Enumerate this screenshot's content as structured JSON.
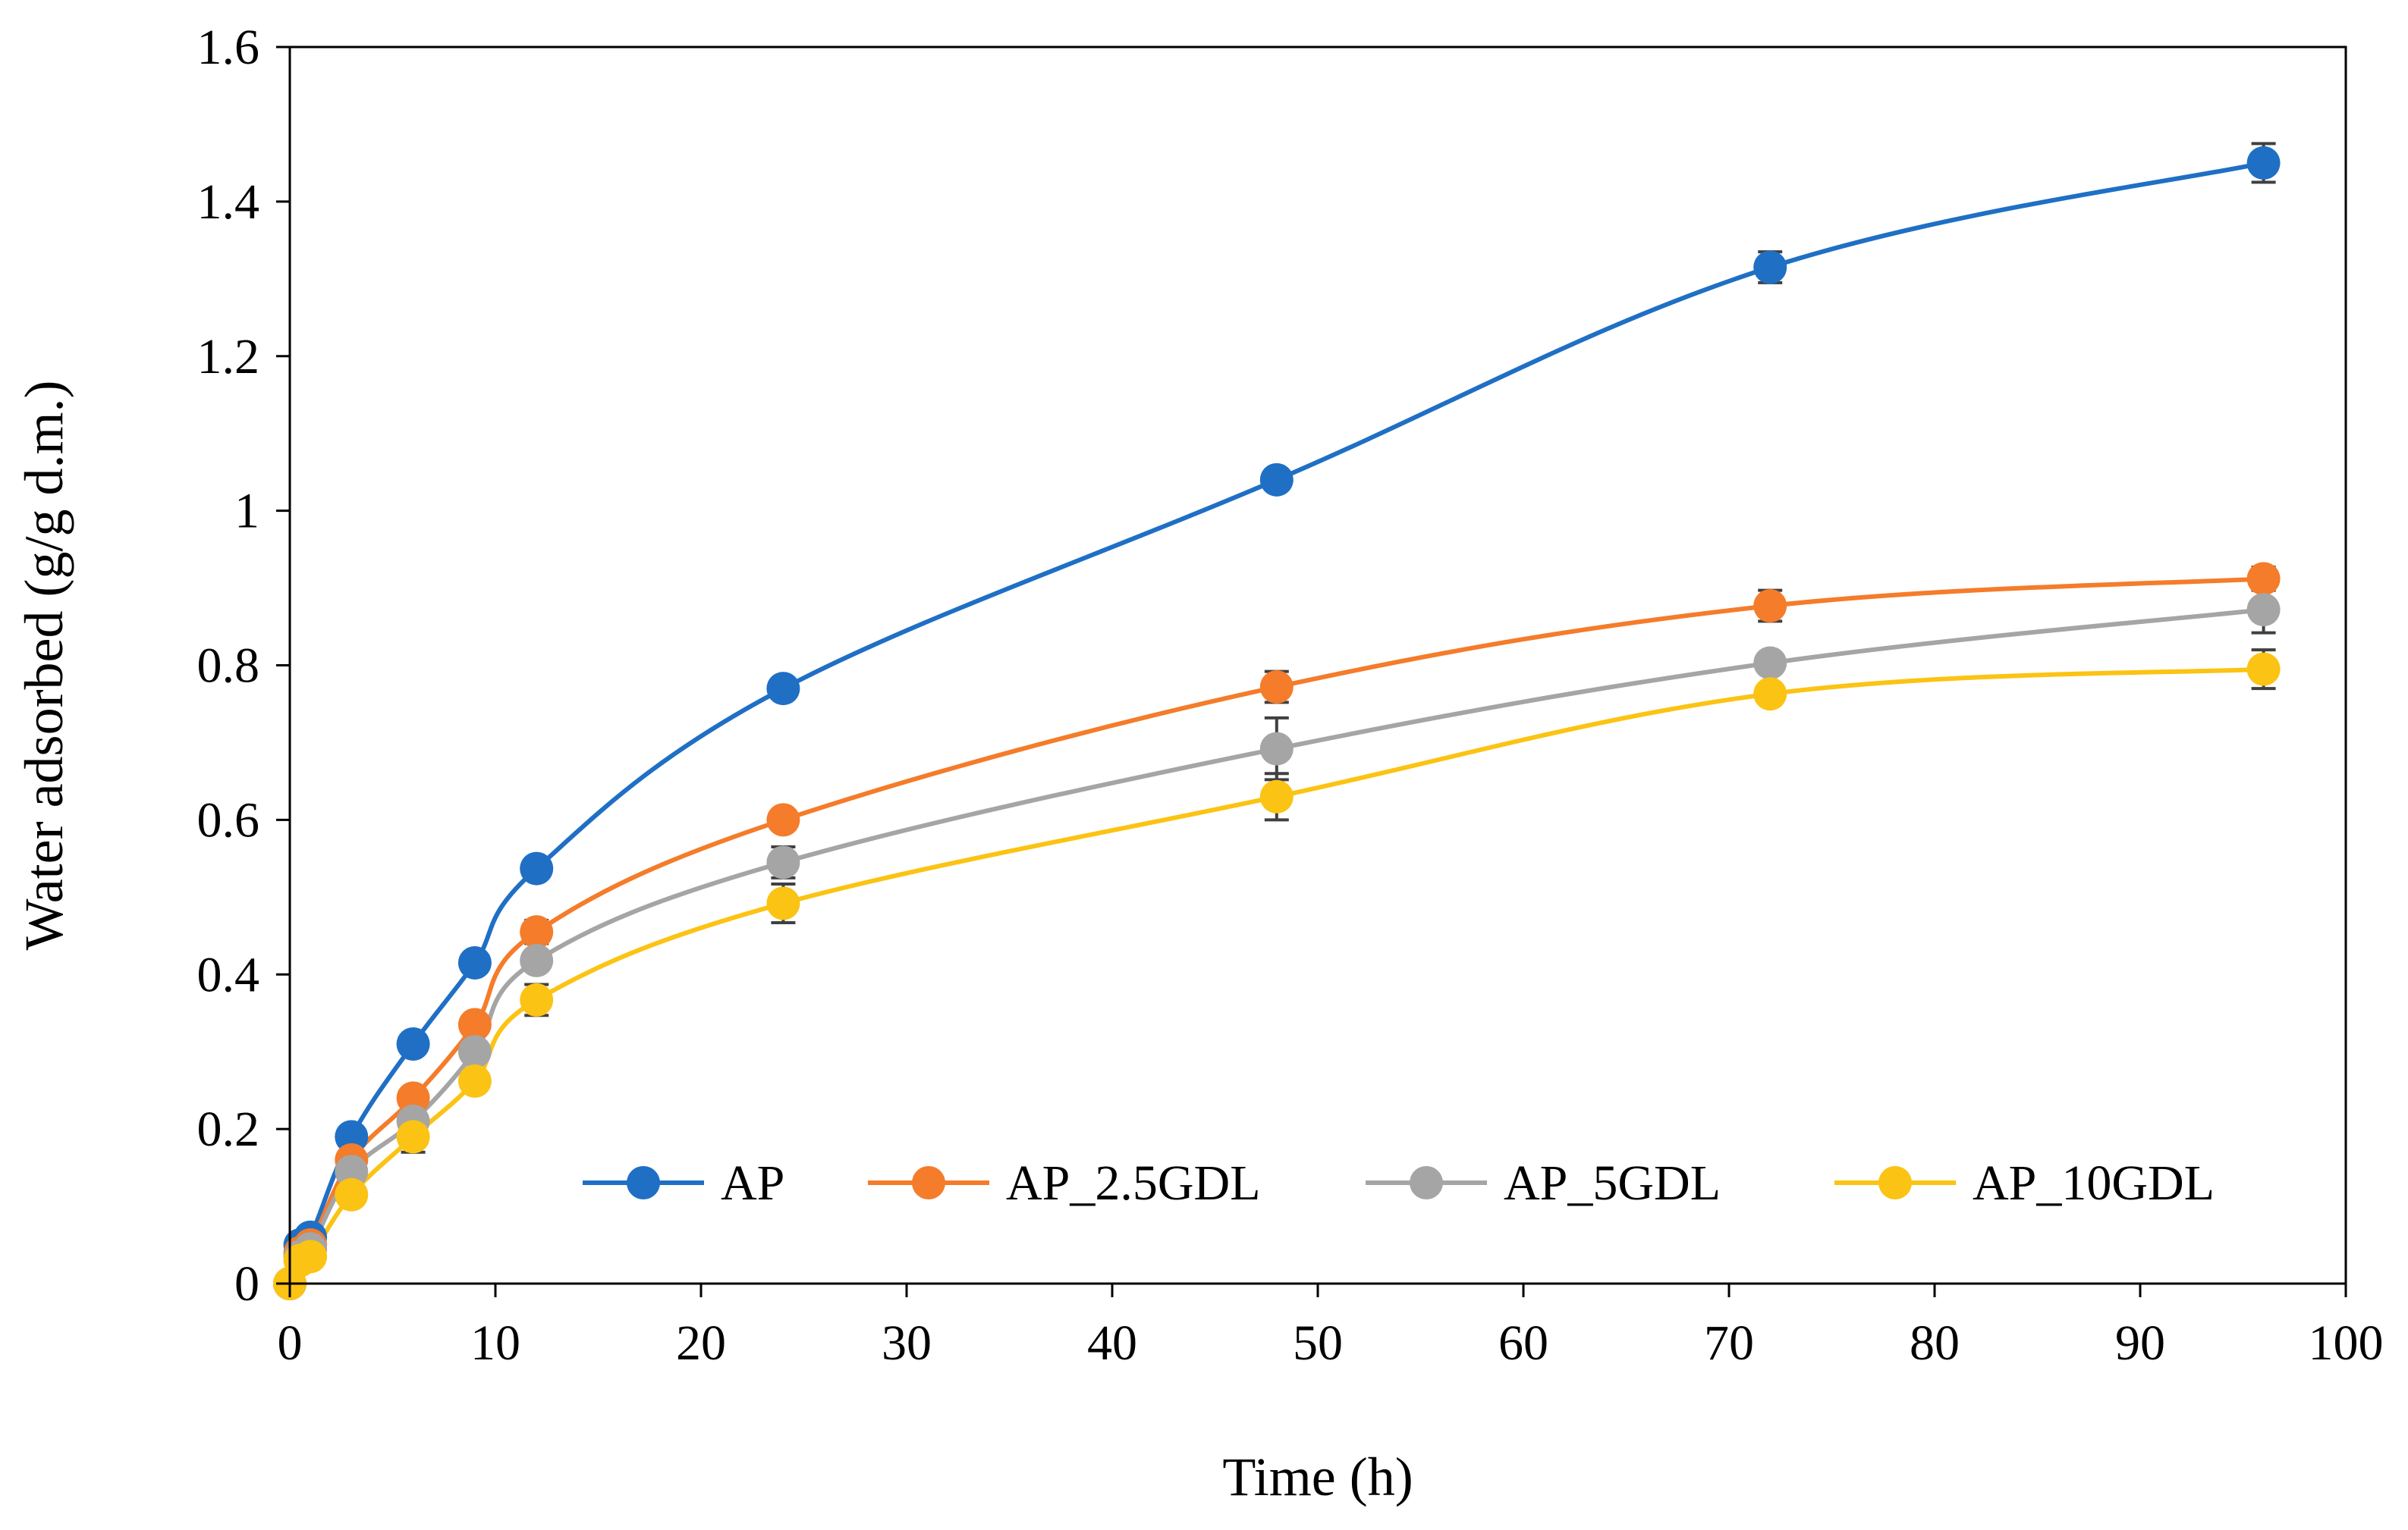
{
  "chart_data": {
    "type": "line",
    "title": "",
    "xlabel": "Time (h)",
    "ylabel": "Water adsorbed (g/g d.m.)",
    "xlim": [
      0,
      100
    ],
    "ylim": [
      0,
      1.6
    ],
    "xticks": [
      0,
      10,
      20,
      30,
      40,
      50,
      60,
      70,
      80,
      90,
      100
    ],
    "yticks": [
      0,
      0.2,
      0.4,
      0.6,
      0.8,
      1,
      1.2,
      1.4,
      1.6
    ],
    "xtick_labels": [
      "0",
      "10",
      "20",
      "30",
      "40",
      "50",
      "60",
      "70",
      "80",
      "90",
      "100"
    ],
    "ytick_labels": [
      "0",
      "0.2",
      "0.4",
      "0.6",
      "0.8",
      "1",
      "1.2",
      "1.4",
      "1.6"
    ],
    "grid": false,
    "legend_position": "bottom-right inside plot",
    "x": [
      0,
      0.5,
      1,
      3,
      6,
      9,
      12,
      24,
      48,
      72,
      96
    ],
    "series": [
      {
        "name": "AP",
        "color": "#1f6fc5",
        "values": [
          0,
          0.05,
          0.06,
          0.19,
          0.31,
          0.415,
          0.537,
          0.77,
          1.04,
          1.315,
          1.45
        ],
        "errors": [
          0,
          0,
          0,
          0,
          0,
          0,
          0,
          0,
          0,
          0.02,
          0.025
        ]
      },
      {
        "name": "AP_2.5GDL",
        "color": "#f47c2a",
        "values": [
          0,
          0.04,
          0.05,
          0.16,
          0.24,
          0.335,
          0.455,
          0.6,
          0.772,
          0.877,
          0.912
        ],
        "errors": [
          0,
          0,
          0,
          0,
          0,
          0,
          0.015,
          0,
          0.02,
          0.02,
          0.015
        ]
      },
      {
        "name": "AP_5GDL",
        "color": "#a5a5a5",
        "values": [
          0,
          0.035,
          0.045,
          0.145,
          0.21,
          0.3,
          0.418,
          0.545,
          0.692,
          0.803,
          0.872
        ],
        "errors": [
          0,
          0,
          0,
          0,
          0,
          0,
          0,
          0.02,
          0.04,
          0,
          0.03
        ]
      },
      {
        "name": "AP_10GDL",
        "color": "#fbc313",
        "values": [
          0,
          0.03,
          0.035,
          0.115,
          0.19,
          0.262,
          0.367,
          0.492,
          0.63,
          0.763,
          0.795
        ],
        "errors": [
          0,
          0,
          0,
          0,
          0.02,
          0,
          0.02,
          0.025,
          0.03,
          0,
          0.025
        ]
      }
    ]
  }
}
